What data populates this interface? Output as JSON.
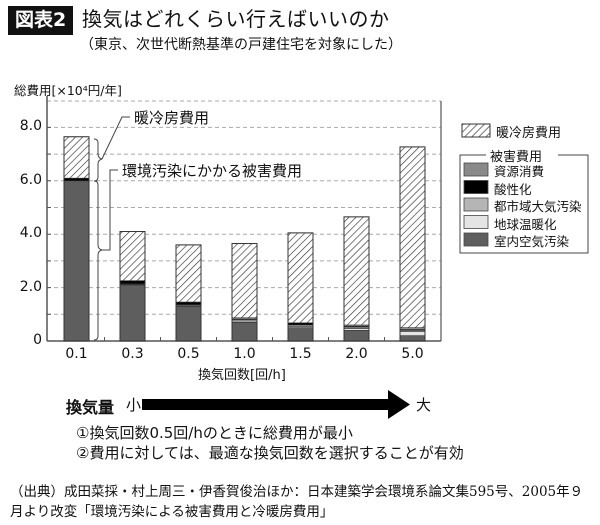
{
  "header": {
    "badge": "図表2",
    "title": "換気はどれくらい行えばいいのか",
    "subtitle": "（東京、次世代断熱基準の戸建住宅を対象にした）"
  },
  "chart_data": {
    "type": "bar",
    "stacked": true,
    "title": "換気はどれくらい行えばいいのか",
    "subtitle": "（東京、次世代断熱基準の戸建住宅を対象にした）",
    "xlabel": "換気回数[回/h]",
    "ylabel": "総費用[×10⁴円/年]",
    "ylim": [
      0,
      8.8
    ],
    "yticks": [
      "0",
      "2.0",
      "4.0",
      "6.0",
      "8.0"
    ],
    "grid": "dashed horizontal every 1.0",
    "categories": [
      "0.1",
      "0.3",
      "0.5",
      "1.0",
      "1.5",
      "2.0",
      "5.0"
    ],
    "series": [
      {
        "name": "室内空気汚染",
        "values": [
          6.0,
          2.1,
          1.3,
          0.7,
          0.5,
          0.4,
          0.2
        ],
        "color": "#5e5e5e"
      },
      {
        "name": "地球温暖化",
        "values": [
          0.0,
          0.02,
          0.03,
          0.05,
          0.05,
          0.07,
          0.15
        ],
        "color": "#e4e4e4"
      },
      {
        "name": "都市域大気汚染",
        "values": [
          0.0,
          0.02,
          0.03,
          0.05,
          0.05,
          0.05,
          0.05
        ],
        "color": "#b5b5b5"
      },
      {
        "name": "酸性化",
        "values": [
          0.1,
          0.12,
          0.1,
          0.02,
          0.08,
          0.03,
          0.03
        ],
        "color": "#000000"
      },
      {
        "name": "資源消費",
        "values": [
          0.0,
          0.0,
          0.0,
          0.05,
          0.0,
          0.05,
          0.07
        ],
        "color": "#8a8a8a"
      },
      {
        "name": "暖冷房費用",
        "values": [
          1.55,
          1.84,
          2.14,
          2.78,
          3.37,
          4.05,
          6.77
        ],
        "pattern": "hatch"
      }
    ],
    "totals": [
      7.65,
      4.1,
      3.6,
      3.65,
      4.05,
      4.65,
      7.27
    ],
    "legend": {
      "position": "right",
      "heating_label": "暖冷房費用",
      "group_title": "被害費用",
      "items": [
        "資源消費",
        "酸性化",
        "都市域大気汚染",
        "地球温暖化",
        "室内空気汚染"
      ]
    },
    "annotations": [
      "暖冷房費用",
      "環境汚染にかかる被害費用"
    ]
  },
  "axis": {
    "ylabel": "総費用[×10⁴円/年]",
    "xlabel": "換気回数[回/h]",
    "yticks": [
      "0",
      "2.0",
      "4.0",
      "6.0",
      "8.0"
    ],
    "xticks": [
      "0.1",
      "0.3",
      "0.5",
      "1.0",
      "1.5",
      "2.0",
      "5.0"
    ]
  },
  "legend": {
    "heating": "暖冷房費用",
    "group": "被害費用",
    "items": [
      {
        "label": "資源消費",
        "color": "#8a8a8a"
      },
      {
        "label": "酸性化",
        "color": "#000000"
      },
      {
        "label": "都市域大気汚染",
        "color": "#b5b5b5"
      },
      {
        "label": "地球温暖化",
        "color": "#e4e4e4"
      },
      {
        "label": "室内空気汚染",
        "color": "#5e5e5e"
      }
    ]
  },
  "annotations": {
    "heating": "暖冷房費用",
    "damage": "環境汚染にかかる被害費用"
  },
  "volume": {
    "label": "換気量",
    "small": "小",
    "large": "大"
  },
  "notes": [
    "①換気回数0.5回/hのときに総費用が最小",
    "②費用に対しては、最適な換気回数を選択することが有効"
  ],
  "source": {
    "line1": "（出典）成田菜採・村上周三・伊香賀俊治ほか：日本建築学会環境系論文集595号、2005年９",
    "line2": "月より改変「環境汚染による被害費用と冷暖房費用」"
  }
}
